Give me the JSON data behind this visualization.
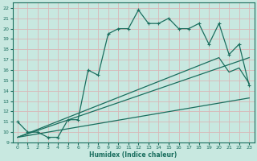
{
  "xlabel": "Humidex (Indice chaleur)",
  "xlim": [
    -0.5,
    23.5
  ],
  "ylim": [
    9,
    22.5
  ],
  "bg_color": "#c8e8e0",
  "grid_color": "#b0d8cc",
  "line_color": "#1a6e5e",
  "line1_x": [
    0,
    1,
    2,
    3,
    4,
    5,
    6,
    7,
    8,
    9,
    10,
    11,
    12,
    13,
    14,
    15,
    16,
    17,
    18,
    19,
    20,
    21,
    22,
    23
  ],
  "line1_y": [
    11.0,
    10.0,
    10.0,
    9.5,
    9.5,
    11.2,
    11.2,
    16.0,
    15.5,
    19.5,
    20.0,
    20.0,
    21.8,
    20.5,
    20.5,
    21.0,
    20.0,
    20.0,
    20.5,
    18.5,
    20.5,
    17.5,
    18.5,
    14.5
  ],
  "line2_x": [
    0,
    23
  ],
  "line2_y": [
    9.5,
    17.2
  ],
  "line3_x": [
    0,
    20,
    21,
    22,
    23
  ],
  "line3_y": [
    9.5,
    17.2,
    15.8,
    16.2,
    14.7
  ],
  "line4_x": [
    0,
    23
  ],
  "line4_y": [
    9.5,
    13.3
  ],
  "xticks": [
    0,
    1,
    2,
    3,
    4,
    5,
    6,
    7,
    8,
    9,
    10,
    11,
    12,
    13,
    14,
    15,
    16,
    17,
    18,
    19,
    20,
    21,
    22,
    23
  ],
  "yticks": [
    9,
    10,
    11,
    12,
    13,
    14,
    15,
    16,
    17,
    18,
    19,
    20,
    21,
    22
  ]
}
